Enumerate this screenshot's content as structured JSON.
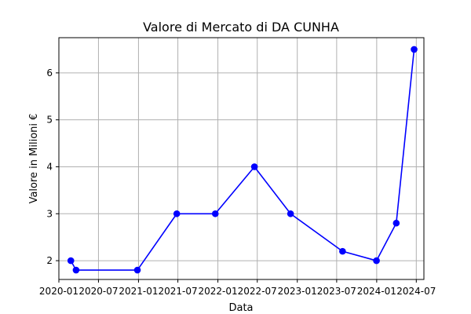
{
  "chart_data": {
    "type": "line",
    "title": "Valore di Mercato di DA CUNHA",
    "xlabel": "Data",
    "ylabel": "Valore in Milioni €",
    "grid": true,
    "xlim": [
      "2020-01-01",
      "2024-08-05"
    ],
    "ylim": [
      1.6,
      6.75
    ],
    "x_ticks": [
      {
        "date": "2020-01-01",
        "label": "2020-01"
      },
      {
        "date": "2020-07-01",
        "label": "2020-07"
      },
      {
        "date": "2021-01-01",
        "label": "2021-01"
      },
      {
        "date": "2021-07-01",
        "label": "2021-07"
      },
      {
        "date": "2022-01-01",
        "label": "2022-01"
      },
      {
        "date": "2022-07-01",
        "label": "2022-07"
      },
      {
        "date": "2023-01-01",
        "label": "2023-01"
      },
      {
        "date": "2023-07-01",
        "label": "2023-07"
      },
      {
        "date": "2024-01-01",
        "label": "2024-01"
      },
      {
        "date": "2024-07-01",
        "label": "2024-07"
      }
    ],
    "y_ticks": [
      2,
      3,
      4,
      5,
      6
    ],
    "series": [
      {
        "color": "#0000ff",
        "marker": "circle",
        "points": [
          {
            "x": "2020-02-25",
            "y": 2.0
          },
          {
            "x": "2020-03-20",
            "y": 1.8
          },
          {
            "x": "2020-12-27",
            "y": 1.8
          },
          {
            "x": "2021-06-26",
            "y": 3.0
          },
          {
            "x": "2021-12-20",
            "y": 3.0
          },
          {
            "x": "2022-06-18",
            "y": 4.0
          },
          {
            "x": "2022-12-01",
            "y": 3.0
          },
          {
            "x": "2023-07-28",
            "y": 2.2
          },
          {
            "x": "2023-12-31",
            "y": 2.0
          },
          {
            "x": "2024-03-31",
            "y": 2.8
          },
          {
            "x": "2024-06-21",
            "y": 6.5
          }
        ]
      }
    ]
  }
}
